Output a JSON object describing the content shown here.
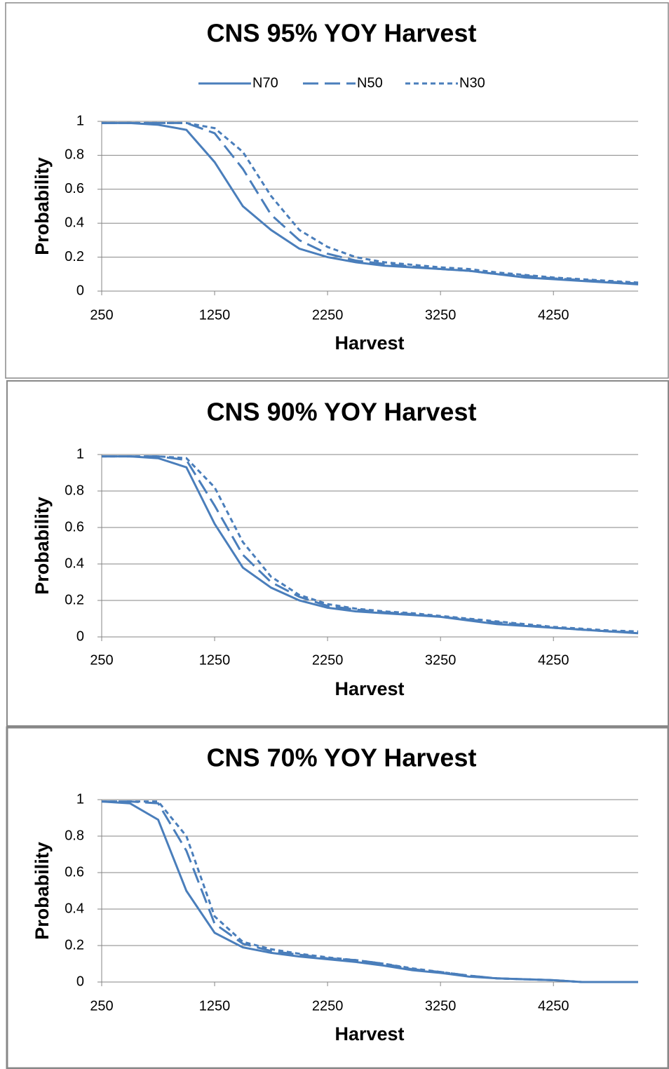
{
  "chart_data": [
    {
      "type": "line",
      "title": "CNS 95% YOY Harvest",
      "x_label": "Harvest",
      "y_label": "Probability",
      "x": [
        250,
        500,
        750,
        1000,
        1250,
        1500,
        1750,
        2000,
        2250,
        2500,
        2750,
        3000,
        3250,
        3500,
        3750,
        4000,
        4250,
        4500,
        4750,
        5000
      ],
      "series": [
        {
          "name": "N70",
          "color": "#4a7ebb",
          "dash": "solid",
          "values": [
            0.99,
            0.99,
            0.98,
            0.95,
            0.76,
            0.5,
            0.36,
            0.25,
            0.2,
            0.17,
            0.15,
            0.14,
            0.13,
            0.12,
            0.1,
            0.08,
            0.07,
            0.06,
            0.05,
            0.04
          ]
        },
        {
          "name": "N50",
          "color": "#4a7ebb",
          "dash": "long",
          "values": [
            0.99,
            0.99,
            0.99,
            0.99,
            0.93,
            0.72,
            0.45,
            0.3,
            0.22,
            0.18,
            0.16,
            0.145,
            0.13,
            0.12,
            0.1,
            0.09,
            0.075,
            0.065,
            0.055,
            0.045
          ]
        },
        {
          "name": "N30",
          "color": "#4a7ebb",
          "dash": "short",
          "values": [
            0.99,
            0.99,
            0.99,
            0.99,
            0.96,
            0.82,
            0.56,
            0.36,
            0.26,
            0.2,
            0.17,
            0.155,
            0.14,
            0.13,
            0.11,
            0.095,
            0.08,
            0.07,
            0.06,
            0.05
          ]
        }
      ],
      "xlim": [
        250,
        5000
      ],
      "xticks": [
        250,
        1250,
        2250,
        3250,
        4250
      ],
      "ylim": [
        0,
        1
      ],
      "yticks": [
        0,
        0.2,
        0.4,
        0.6,
        0.8,
        1
      ],
      "grid": true,
      "legend": "top"
    },
    {
      "type": "line",
      "title": "CNS 90% YOY Harvest",
      "x_label": "Harvest",
      "y_label": "Probability",
      "x": [
        250,
        500,
        750,
        1000,
        1250,
        1500,
        1750,
        2000,
        2250,
        2500,
        2750,
        3000,
        3250,
        3500,
        3750,
        4000,
        4250,
        4500,
        4750,
        5000
      ],
      "series": [
        {
          "color": "#4a7ebb",
          "dash": "solid",
          "values": [
            0.99,
            0.99,
            0.98,
            0.93,
            0.62,
            0.38,
            0.27,
            0.2,
            0.16,
            0.14,
            0.13,
            0.12,
            0.11,
            0.09,
            0.07,
            0.06,
            0.05,
            0.04,
            0.03,
            0.02
          ]
        },
        {
          "color": "#4a7ebb",
          "dash": "long",
          "values": [
            0.99,
            0.99,
            0.99,
            0.97,
            0.72,
            0.45,
            0.3,
            0.22,
            0.17,
            0.15,
            0.135,
            0.125,
            0.11,
            0.095,
            0.08,
            0.065,
            0.05,
            0.04,
            0.03,
            0.025
          ]
        },
        {
          "color": "#4a7ebb",
          "dash": "short",
          "values": [
            0.99,
            0.99,
            0.99,
            0.98,
            0.82,
            0.52,
            0.33,
            0.23,
            0.18,
            0.155,
            0.14,
            0.13,
            0.115,
            0.1,
            0.085,
            0.07,
            0.055,
            0.045,
            0.035,
            0.03
          ]
        }
      ],
      "xlim": [
        250,
        5000
      ],
      "xticks": [
        250,
        1250,
        2250,
        3250,
        4250
      ],
      "ylim": [
        0,
        1
      ],
      "yticks": [
        0,
        0.2,
        0.4,
        0.6,
        0.8,
        1
      ],
      "grid": true
    },
    {
      "type": "line",
      "title": "CNS 70% YOY Harvest",
      "x_label": "Harvest",
      "y_label": "Probability",
      "x": [
        250,
        500,
        750,
        1000,
        1250,
        1500,
        1750,
        2000,
        2250,
        2500,
        2750,
        3000,
        3250,
        3500,
        3750,
        4000,
        4250,
        4500,
        4750,
        5000
      ],
      "series": [
        {
          "color": "#4a7ebb",
          "dash": "solid",
          "values": [
            0.99,
            0.98,
            0.89,
            0.5,
            0.27,
            0.19,
            0.16,
            0.14,
            0.125,
            0.11,
            0.09,
            0.065,
            0.05,
            0.03,
            0.02,
            0.015,
            0.01,
            0,
            0,
            0
          ]
        },
        {
          "color": "#4a7ebb",
          "dash": "long",
          "values": [
            0.99,
            0.99,
            0.98,
            0.72,
            0.32,
            0.21,
            0.17,
            0.15,
            0.13,
            0.12,
            0.1,
            0.07,
            0.055,
            0.035,
            0.02,
            0.015,
            0.01,
            0,
            0,
            0
          ]
        },
        {
          "color": "#4a7ebb",
          "dash": "short",
          "values": [
            0.99,
            0.99,
            0.99,
            0.8,
            0.36,
            0.22,
            0.18,
            0.155,
            0.135,
            0.12,
            0.1,
            0.075,
            0.055,
            0.035,
            0.02,
            0.015,
            0.01,
            0,
            0,
            0
          ]
        }
      ],
      "xlim": [
        250,
        5000
      ],
      "xticks": [
        250,
        1250,
        2250,
        3250,
        4250
      ],
      "ylim": [
        0,
        1
      ],
      "yticks": [
        0,
        0.2,
        0.4,
        0.6,
        0.8,
        1
      ],
      "grid": true
    }
  ]
}
